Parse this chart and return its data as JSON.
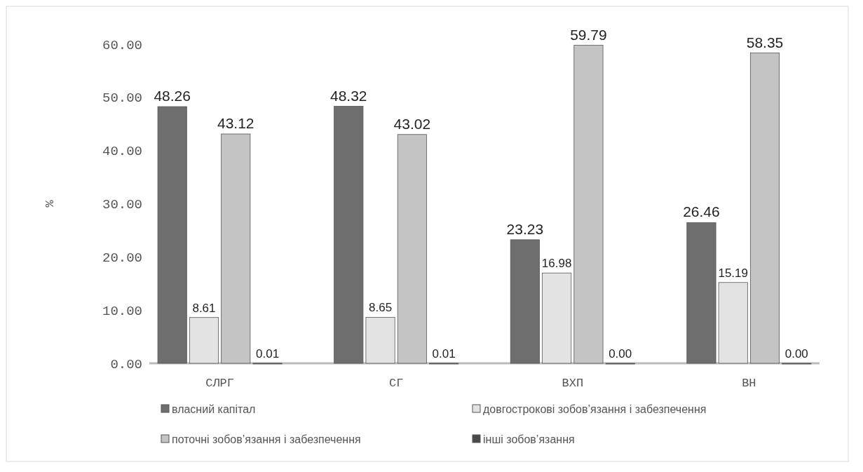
{
  "chart_data": {
    "type": "bar",
    "ylabel": "%",
    "categories": [
      "СЛРГ",
      "СГ",
      "ВХП",
      "ВН"
    ],
    "series": [
      {
        "name": "власний капітал",
        "color": "#6e6e6e",
        "values": [
          48.26,
          48.32,
          23.23,
          26.46
        ],
        "value_labels": [
          "48.26",
          "48.32",
          "23.23",
          "26.46"
        ]
      },
      {
        "name": "довгострокові зобов’язання і забезпечення",
        "color": "#e3e3e3",
        "values": [
          8.61,
          8.65,
          16.98,
          15.19
        ],
        "value_labels": [
          "8.61",
          "8.65",
          "16.98",
          "15.19"
        ]
      },
      {
        "name": "поточні зобов’язання і забезпечення",
        "color": "#c4c4c4",
        "values": [
          43.12,
          43.02,
          59.79,
          58.35
        ],
        "value_labels": [
          "43.12",
          "43.02",
          "59.79",
          "58.35"
        ]
      },
      {
        "name": "інші зобов’язання",
        "color": "#4a4a4a",
        "values": [
          0.01,
          0.01,
          0.0,
          0.0
        ],
        "value_labels": [
          "0.01",
          "0.01",
          "0.00",
          "0.00"
        ]
      }
    ],
    "ylim": [
      0,
      60
    ],
    "yticks": [
      {
        "value": 0,
        "label": "0.00"
      },
      {
        "value": 10,
        "label": "10.00"
      },
      {
        "value": 20,
        "label": "20.00"
      },
      {
        "value": 30,
        "label": "30.00"
      },
      {
        "value": 40,
        "label": "40.00"
      },
      {
        "value": 50,
        "label": "50.00"
      },
      {
        "value": 60,
        "label": "60.00"
      }
    ],
    "legend": "bottom"
  }
}
